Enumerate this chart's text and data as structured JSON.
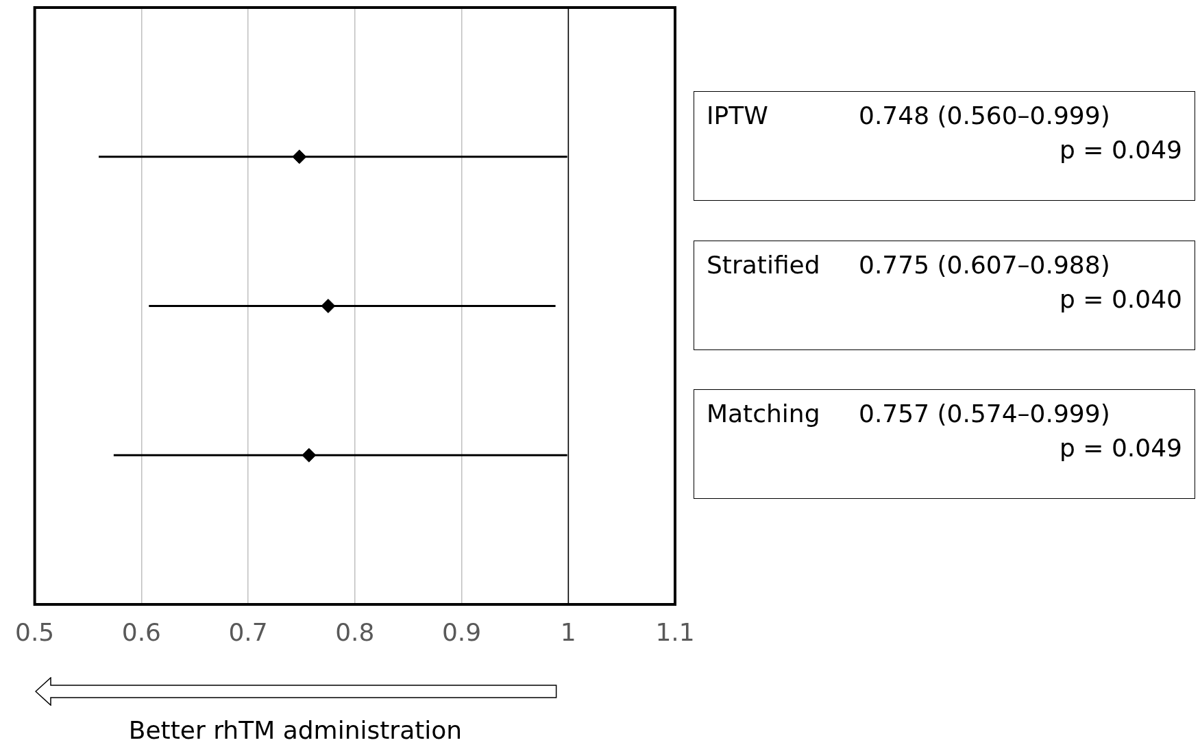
{
  "chart_data": {
    "type": "scatter",
    "orientation": "horizontal",
    "categories": [
      "IPTW",
      "Stratified",
      "Matching"
    ],
    "values": [
      0.748,
      0.775,
      0.757
    ],
    "errors": [
      [
        0.56,
        0.999
      ],
      [
        0.607,
        0.988
      ],
      [
        0.574,
        0.999
      ]
    ],
    "value_labels": [
      "0.748 (0.560–0.999)",
      "0.775 (0.607–0.988)",
      "0.757 (0.574–0.999)"
    ],
    "annotations": [
      "p = 0.049",
      "p = 0.040",
      "p = 0.049"
    ],
    "color": "#000000",
    "marker": "diamond",
    "xlim": [
      0.5,
      1.1
    ],
    "xticks": [
      0.5,
      0.6,
      0.7,
      0.8,
      0.9,
      1,
      1.1
    ],
    "xlabel": "Better rhTM administration",
    "ref_lines": [
      {
        "axis": "x",
        "value": 1,
        "color": "#000000"
      }
    ],
    "grid": "x",
    "tick_labels": "x",
    "legend": false
  }
}
